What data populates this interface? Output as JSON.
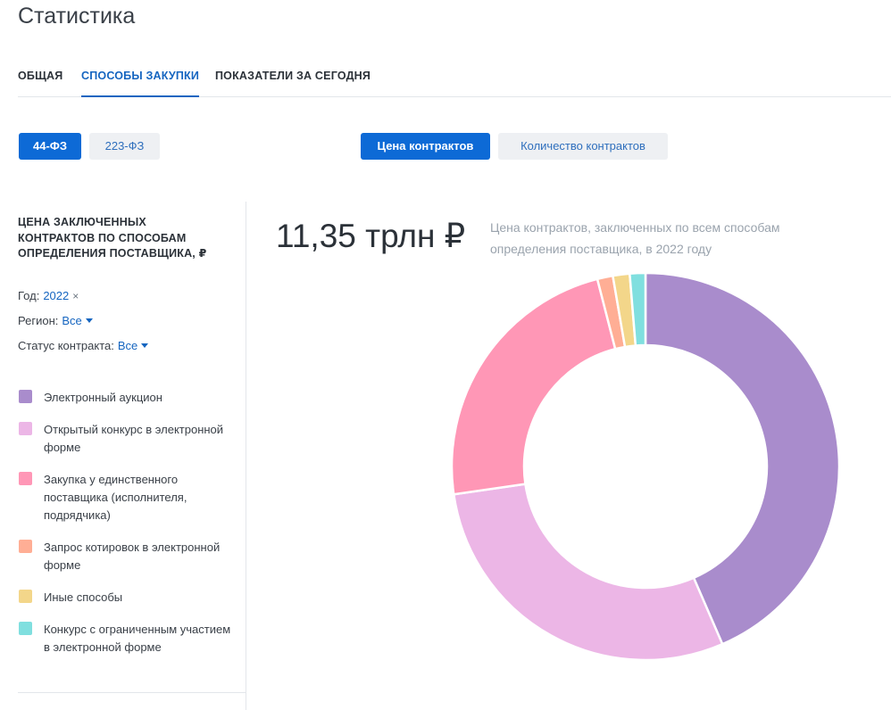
{
  "page": {
    "title": "Статистика"
  },
  "tabs": [
    {
      "label": "ОБЩАЯ",
      "active": false
    },
    {
      "label": "СПОСОБЫ ЗАКУПКИ",
      "active": true
    },
    {
      "label": "ПОКАЗАТЕЛИ ЗА СЕГОДНЯ",
      "active": false
    }
  ],
  "law_toggle": {
    "options": [
      "44-ФЗ",
      "223-ФЗ"
    ],
    "selected": "44-ФЗ"
  },
  "metric_toggle": {
    "options": [
      "Цена контрактов",
      "Количество контрактов"
    ],
    "selected": "Цена контрактов"
  },
  "sidebar": {
    "title": "ЦЕНА ЗАКЛЮЧЕННЫХ КОНТРАКТОВ ПО СПОСОБАМ ОПРЕДЕЛЕНИЯ ПОСТАВЩИКА, ₽",
    "filters": {
      "year": {
        "label": "Год:",
        "value": "2022",
        "clear_icon": "×"
      },
      "region": {
        "label": "Регион:",
        "value": "Все"
      },
      "status": {
        "label": "Статус контракта:",
        "value": "Все"
      }
    }
  },
  "summary": {
    "value": "11,35 трлн ₽",
    "caption": "Цена контрактов, заключенных по всем способам определения поставщика, в 2022 году"
  },
  "colors": {
    "accent": "#0d6ad6",
    "link": "#1565c0",
    "secondary_bg": "#eef0f3"
  },
  "chart_data": {
    "type": "pie",
    "donut": true,
    "legend_position": "left",
    "categories": [
      "Электронный аукцион",
      "Открытый конкурс в электронной форме",
      "Закупка у единственного поставщика (исполнителя, подрядчика)",
      "Запрос котировок в электронной форме",
      "Иные способы",
      "Конкурс с ограниченным участием в электронной форме"
    ],
    "values": [
      43.5,
      29.2,
      23.3,
      1.3,
      1.4,
      1.3
    ],
    "unit": "%",
    "colors": [
      "#a98ccc",
      "#ecb6e6",
      "#ff97b6",
      "#ffae95",
      "#f3d68a",
      "#80dfdf"
    ]
  }
}
